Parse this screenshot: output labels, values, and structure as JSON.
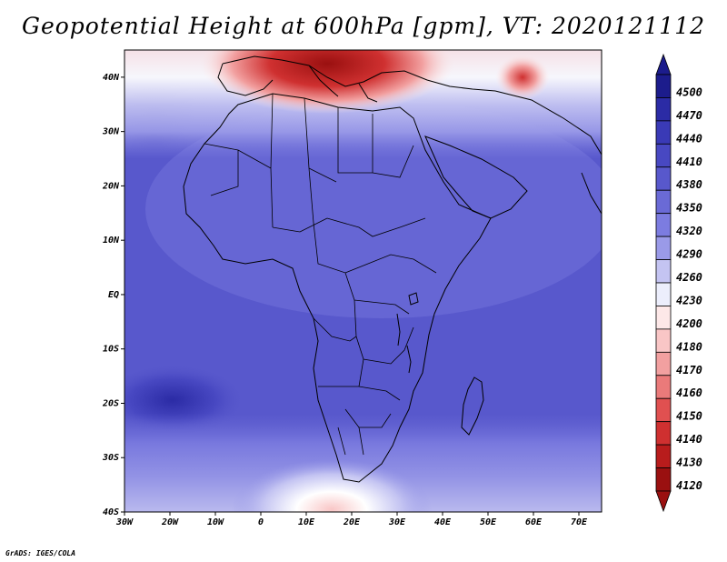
{
  "title": "Geopotential Height at 600hPa [gpm], VT: 2020121112",
  "footer": "GrADS: IGES/COLA",
  "map": {
    "lat_ticks": [
      "40N",
      "30N",
      "20N",
      "10N",
      "EQ",
      "10S",
      "20S",
      "30S",
      "40S"
    ],
    "lon_ticks": [
      "30W",
      "20W",
      "10W",
      "0",
      "10E",
      "20E",
      "30E",
      "40E",
      "50E",
      "60E",
      "70E"
    ],
    "lat_range": [
      -40,
      45
    ],
    "lon_range": [
      -30,
      75
    ]
  },
  "colorbar": {
    "levels": [
      "4500",
      "4470",
      "4440",
      "4410",
      "4380",
      "4350",
      "4320",
      "4290",
      "4260",
      "4230",
      "4200",
      "4180",
      "4170",
      "4160",
      "4150",
      "4140",
      "4130",
      "4120"
    ],
    "colors": [
      "#1c1c8c",
      "#2b2ba5",
      "#3a3ab6",
      "#4848c2",
      "#5858cc",
      "#6a6ad6",
      "#7c7ce0",
      "#9a9ae8",
      "#c4c4f2",
      "#eceefc",
      "#fde8e8",
      "#f9c6c6",
      "#f2a0a0",
      "#ea7a7a",
      "#e05050",
      "#cf3030",
      "#b81c1c",
      "#9a1010"
    ],
    "top_arrow_color": "#1c1c8c",
    "bottom_arrow_color": "#9a1010"
  }
}
